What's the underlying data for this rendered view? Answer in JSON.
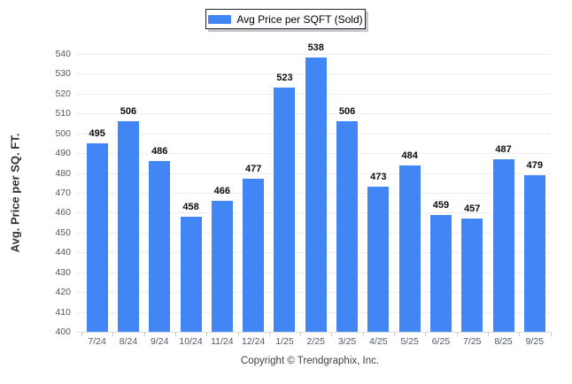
{
  "legend": {
    "label": "Avg Price per SQFT (Sold)",
    "swatch_color": "#4285f4"
  },
  "y_axis": {
    "title": "Avg. Price per SQ. FT."
  },
  "footer": {
    "copyright": "Copyright © Trendgraphix, Inc."
  },
  "colors": {
    "bar": "#4285f4",
    "gridline": "#eeeef1",
    "axis_line": "#d9dbdf",
    "tick_label": "#4e5866",
    "value_label": "#0d0d0d"
  },
  "chart_data": {
    "type": "bar",
    "title": "",
    "series_name": "Avg Price per SQFT (Sold)",
    "categories": [
      "7/24",
      "8/24",
      "9/24",
      "10/24",
      "11/24",
      "12/24",
      "1/25",
      "2/25",
      "3/25",
      "4/25",
      "5/25",
      "6/25",
      "7/25",
      "8/25",
      "9/25"
    ],
    "values": [
      495,
      506,
      486,
      458,
      466,
      477,
      523,
      538,
      506,
      473,
      484,
      459,
      457,
      487,
      479
    ],
    "xlabel": "",
    "ylabel": "Avg. Price per SQ. FT.",
    "ylim": [
      400,
      540
    ],
    "ytick_step": 10,
    "grid": "horizontal",
    "legend_position": "top-center",
    "bar_color": "#4285f4"
  }
}
